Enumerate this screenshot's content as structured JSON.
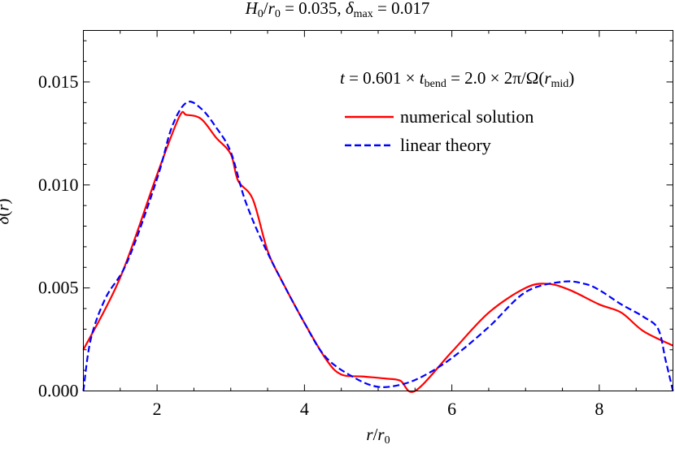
{
  "chart_data": {
    "type": "line",
    "title_parts": [
      {
        "t": "H",
        "it": true
      },
      {
        "t": "0",
        "sub": true
      },
      {
        "t": "/"
      },
      {
        "t": "r",
        "it": true
      },
      {
        "t": "0",
        "sub": true
      },
      {
        "t": " = 0.035,   "
      },
      {
        "t": "δ",
        "it": true
      },
      {
        "t": "max",
        "sub": true
      },
      {
        "t": " = 0.017"
      }
    ],
    "annotation_parts": [
      {
        "t": "t",
        "it": true
      },
      {
        "t": " = 0.601 × "
      },
      {
        "t": "t",
        "it": true
      },
      {
        "t": "bend",
        "sub": true
      },
      {
        "t": " = 2.0 × 2π/Ω("
      },
      {
        "t": "r",
        "it": true
      },
      {
        "t": "mid",
        "sub": true
      },
      {
        "t": ")"
      }
    ],
    "xlabel_parts": [
      {
        "t": "r",
        "it": true
      },
      {
        "t": "/"
      },
      {
        "t": "r",
        "it": true
      },
      {
        "t": "0",
        "sub": true
      }
    ],
    "ylabel_parts": [
      {
        "t": "δ",
        "it": true
      },
      {
        "t": "("
      },
      {
        "t": "r",
        "it": true
      },
      {
        "t": ")"
      }
    ],
    "xlim": [
      1,
      9
    ],
    "ylim": [
      0,
      0.0175
    ],
    "xticks": [
      "2",
      "4",
      "6",
      "8"
    ],
    "yticks": [
      "0.000",
      "0.005",
      "0.010",
      "0.015"
    ],
    "grid": false,
    "legend_position": "top-right",
    "series": [
      {
        "name": "numerical solution",
        "color": "#ff0000",
        "style": "solid",
        "x": [
          1,
          1.5,
          2,
          2.3,
          2.4,
          2.6,
          2.8,
          3,
          3.1,
          3.3,
          3.5,
          3.7,
          4,
          4.3,
          4.5,
          4.8,
          5.1,
          5.3,
          5.5,
          6,
          6.5,
          7,
          7.3,
          7.6,
          8,
          8.3,
          8.6,
          9
        ],
        "y": [
          0.002,
          0.0055,
          0.0105,
          0.0133,
          0.0134,
          0.0132,
          0.0123,
          0.0115,
          0.0102,
          0.0093,
          0.0068,
          0.0053,
          0.0033,
          0.0015,
          0.0008,
          0.0007,
          0.0006,
          0.0005,
          0.0,
          0.0019,
          0.0038,
          0.005,
          0.0052,
          0.0049,
          0.0042,
          0.0038,
          0.0029,
          0.0022
        ]
      },
      {
        "name": "linear theory",
        "color": "#0000ff",
        "style": "dashed",
        "x": [
          1,
          1.1,
          1.3,
          1.6,
          2,
          2.2,
          2.4,
          2.6,
          2.8,
          3,
          3.2,
          3.5,
          4,
          4.3,
          4.7,
          5,
          5.3,
          5.6,
          6,
          6.5,
          7,
          7.5,
          7.8,
          8,
          8.3,
          8.6,
          8.8,
          8.9,
          9
        ],
        "y": [
          0.0,
          0.0025,
          0.0045,
          0.0063,
          0.0103,
          0.0128,
          0.014,
          0.0137,
          0.0128,
          0.0116,
          0.0092,
          0.0067,
          0.0033,
          0.0016,
          0.0006,
          0.0002,
          0.0003,
          0.0007,
          0.0016,
          0.0031,
          0.0048,
          0.0053,
          0.0052,
          0.0049,
          0.0042,
          0.0036,
          0.003,
          0.0015,
          0.0
        ]
      }
    ]
  }
}
